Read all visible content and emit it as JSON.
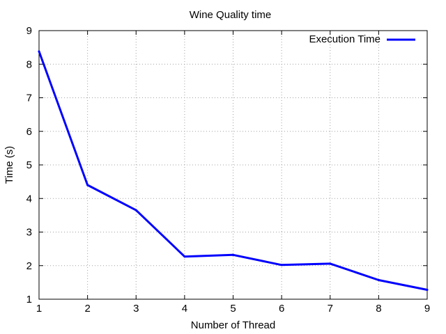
{
  "chart_data": {
    "type": "line",
    "title": "Wine Quality time",
    "xlabel": "Number of Thread",
    "ylabel": "Time  (s)",
    "xlim": [
      1,
      9
    ],
    "ylim": [
      1,
      9
    ],
    "x_ticks": [
      "1",
      "2",
      "3",
      "4",
      "5",
      "6",
      "7",
      "8",
      "9"
    ],
    "y_ticks": [
      "1",
      "2",
      "3",
      "4",
      "5",
      "6",
      "7",
      "8",
      "9"
    ],
    "grid": true,
    "legend_position": "top-right",
    "series": [
      {
        "name": "Execution Time",
        "color": "#0000ff",
        "x": [
          1,
          2,
          3,
          4,
          5,
          6,
          7,
          8,
          9
        ],
        "y": [
          8.38,
          4.4,
          3.65,
          2.27,
          2.32,
          2.02,
          2.06,
          1.57,
          1.28
        ]
      }
    ]
  }
}
